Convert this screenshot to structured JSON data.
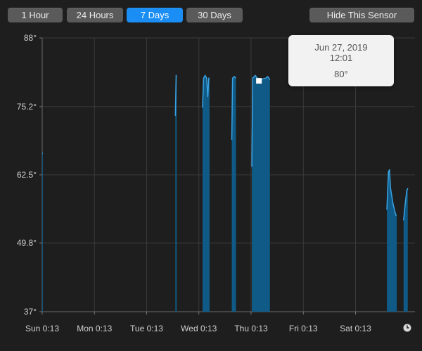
{
  "range_buttons": [
    {
      "label": "1 Hour",
      "active": false
    },
    {
      "label": "24 Hours",
      "active": false
    },
    {
      "label": "7 Days",
      "active": true
    },
    {
      "label": "30 Days",
      "active": false
    }
  ],
  "hide_sensor_label": "Hide This Sensor",
  "tooltip": {
    "date": "Jun 27, 2019",
    "time": "12:01",
    "value": "80°"
  },
  "colors": {
    "fill": "#0f5a86",
    "line": "#3aa3e3",
    "active": "#1a8ef5"
  },
  "icons": {
    "clock": "clock-icon"
  },
  "chart_data": {
    "type": "area",
    "x_unit": "days since Sun 0:13",
    "xlim": [
      0,
      7.08
    ],
    "ylim": [
      37,
      88
    ],
    "y_ticks": [
      "88°",
      "75.2°",
      "62.5°",
      "49.8°",
      "37°"
    ],
    "y_tick_values": [
      88,
      75.2,
      62.5,
      49.8,
      37
    ],
    "x_ticks": [
      "Sun 0:13",
      "Mon 0:13",
      "Tue 0:13",
      "Wed 0:13",
      "Thu 0:13",
      "Fri 0:13",
      "Sat 0:13"
    ],
    "x_tick_values": [
      0,
      1,
      2,
      3,
      4,
      5,
      6
    ],
    "grid": true,
    "segments": [
      [
        [
          0.0,
          66.5
        ],
        [
          0.012,
          66.5
        ]
      ],
      [
        [
          2.55,
          73.5
        ],
        [
          2.565,
          81.0
        ],
        [
          2.575,
          81.0
        ]
      ],
      [
        [
          3.07,
          75.0
        ],
        [
          3.09,
          80.5
        ],
        [
          3.12,
          81.0
        ],
        [
          3.15,
          80.5
        ],
        [
          3.17,
          77.0
        ],
        [
          3.19,
          80.5
        ],
        [
          3.205,
          80.5
        ]
      ],
      [
        [
          3.63,
          69.0
        ],
        [
          3.645,
          80.5
        ],
        [
          3.68,
          80.8
        ],
        [
          3.71,
          80.5
        ]
      ],
      [
        [
          4.015,
          64.0
        ],
        [
          4.03,
          80.5
        ],
        [
          4.08,
          81.0
        ],
        [
          4.12,
          80.5
        ],
        [
          4.2,
          80.3
        ],
        [
          4.28,
          80.5
        ],
        [
          4.32,
          80.8
        ],
        [
          4.36,
          80.2
        ]
      ],
      [
        [
          6.6,
          56.0
        ],
        [
          6.63,
          63.0
        ],
        [
          6.65,
          63.5
        ],
        [
          6.67,
          60.0
        ],
        [
          6.72,
          57.0
        ],
        [
          6.77,
          55.0
        ],
        [
          6.79,
          55.0
        ]
      ],
      [
        [
          6.92,
          54.0
        ],
        [
          6.95,
          57.0
        ],
        [
          6.98,
          59.5
        ],
        [
          7.0,
          60.0
        ]
      ]
    ],
    "highlight_point": {
      "x": 4.15,
      "y": 80
    }
  }
}
